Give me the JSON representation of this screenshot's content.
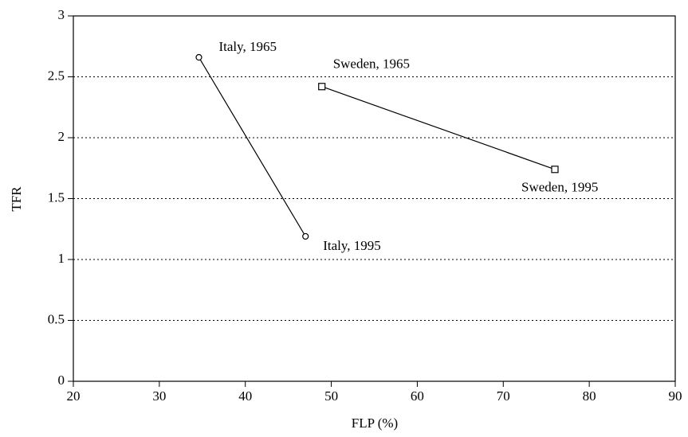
{
  "chart_data": {
    "type": "line",
    "x_label": "FLP (%)",
    "y_label": "TFR",
    "xlim": [
      20,
      90
    ],
    "xticks": [
      20,
      30,
      40,
      50,
      60,
      70,
      80,
      90
    ],
    "ylim": [
      0,
      3
    ],
    "yticks": [
      0,
      0.5,
      1,
      1.5,
      2,
      2.5,
      3
    ],
    "grid": true,
    "series": [
      {
        "color": "#000000",
        "marker": "circle",
        "x": [
          34.6,
          47.0
        ],
        "values": [
          2.66,
          1.19
        ],
        "point_labels": [
          "Italy, 1965",
          "Italy, 1995"
        ]
      },
      {
        "color": "#000000",
        "marker": "square",
        "x": [
          48.9,
          76.0
        ],
        "values": [
          2.42,
          1.74
        ],
        "point_labels": [
          "Sweden, 1965",
          "Sweden, 1995"
        ]
      }
    ]
  }
}
